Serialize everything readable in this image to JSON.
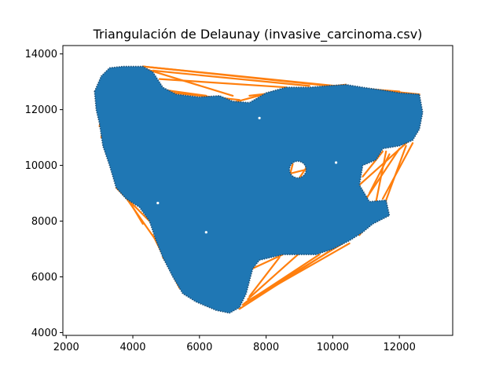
{
  "chart_data": {
    "type": "scatter",
    "title": "Triangulación de Delaunay (invasive_carcinoma.csv)",
    "xlabel": "",
    "ylabel": "",
    "xlim": [
      1900,
      13600
    ],
    "ylim": [
      3900,
      14300
    ],
    "x_ticks": [
      2000,
      4000,
      6000,
      8000,
      10000,
      12000
    ],
    "y_ticks": [
      4000,
      6000,
      8000,
      10000,
      12000,
      14000
    ],
    "grid": false,
    "colors": {
      "points": "#1f77b4",
      "edges": "#ff7f0e",
      "background": "#ffffff",
      "axes": "#000000"
    },
    "region_outline": [
      [
        2850,
        12650
      ],
      [
        3050,
        13200
      ],
      [
        3300,
        13500
      ],
      [
        3700,
        13550
      ],
      [
        4300,
        13550
      ],
      [
        4600,
        13350
      ],
      [
        4900,
        12800
      ],
      [
        5300,
        12550
      ],
      [
        6000,
        12450
      ],
      [
        6600,
        12500
      ],
      [
        7000,
        12300
      ],
      [
        7500,
        12250
      ],
      [
        8000,
        12600
      ],
      [
        8600,
        12800
      ],
      [
        9300,
        12800
      ],
      [
        9800,
        12850
      ],
      [
        10400,
        12900
      ],
      [
        10900,
        12800
      ],
      [
        11500,
        12700
      ],
      [
        12000,
        12600
      ],
      [
        12600,
        12550
      ],
      [
        12700,
        11900
      ],
      [
        12600,
        11300
      ],
      [
        12400,
        10900
      ],
      [
        12000,
        10700
      ],
      [
        11500,
        10600
      ],
      [
        11300,
        10200
      ],
      [
        10900,
        10000
      ],
      [
        10800,
        9300
      ],
      [
        11100,
        8700
      ],
      [
        11600,
        8750
      ],
      [
        11700,
        8200
      ],
      [
        11200,
        7900
      ],
      [
        10900,
        7600
      ],
      [
        10500,
        7300
      ],
      [
        10000,
        7000
      ],
      [
        9500,
        6800
      ],
      [
        8500,
        6800
      ],
      [
        7800,
        6600
      ],
      [
        7600,
        6300
      ],
      [
        7400,
        5400
      ],
      [
        7200,
        4900
      ],
      [
        6900,
        4700
      ],
      [
        6500,
        4800
      ],
      [
        5900,
        5100
      ],
      [
        5500,
        5400
      ],
      [
        5200,
        6000
      ],
      [
        4900,
        6700
      ],
      [
        4700,
        7300
      ],
      [
        4500,
        8000
      ],
      [
        4200,
        8500
      ],
      [
        3800,
        8800
      ],
      [
        3500,
        9200
      ],
      [
        3300,
        10000
      ],
      [
        3100,
        10700
      ],
      [
        3000,
        11500
      ],
      [
        2900,
        12000
      ]
    ],
    "hole": {
      "center": [
        8950,
        9850
      ],
      "radius": [
        250,
        300
      ]
    },
    "edge_segments": [
      [
        [
          4300,
          13550
        ],
        [
          10300,
          12800
        ]
      ],
      [
        [
          4600,
          13400
        ],
        [
          9300,
          12850
        ]
      ],
      [
        [
          4400,
          13450
        ],
        [
          7000,
          12500
        ]
      ],
      [
        [
          4800,
          13100
        ],
        [
          8600,
          12800
        ]
      ],
      [
        [
          5000,
          12700
        ],
        [
          6200,
          12500
        ]
      ],
      [
        [
          5200,
          12600
        ],
        [
          7200,
          12350
        ]
      ],
      [
        [
          7000,
          12250
        ],
        [
          8400,
          12700
        ]
      ],
      [
        [
          7500,
          12500
        ],
        [
          10400,
          12900
        ]
      ],
      [
        [
          4300,
          13550
        ],
        [
          12600,
          12550
        ]
      ],
      [
        [
          9800,
          12850
        ],
        [
          12000,
          12650
        ]
      ],
      [
        [
          3000,
          11400
        ],
        [
          3200,
          12700
        ]
      ],
      [
        [
          3050,
          11000
        ],
        [
          3300,
          12500
        ]
      ],
      [
        [
          3300,
          10100
        ],
        [
          3900,
          8850
        ]
      ],
      [
        [
          3500,
          9200
        ],
        [
          4500,
          8000
        ]
      ],
      [
        [
          3700,
          9000
        ],
        [
          4700,
          7300
        ]
      ],
      [
        [
          3900,
          8700
        ],
        [
          4300,
          7900
        ]
      ],
      [
        [
          4700,
          7300
        ],
        [
          5600,
          5600
        ]
      ],
      [
        [
          4900,
          6700
        ],
        [
          5300,
          6100
        ]
      ],
      [
        [
          4600,
          7500
        ],
        [
          5400,
          5600
        ]
      ],
      [
        [
          7400,
          5100
        ],
        [
          10300,
          7200
        ]
      ],
      [
        [
          7300,
          5000
        ],
        [
          9600,
          6800
        ]
      ],
      [
        [
          7450,
          5200
        ],
        [
          9000,
          6850
        ]
      ],
      [
        [
          7350,
          5050
        ],
        [
          10500,
          7200
        ]
      ],
      [
        [
          7500,
          5300
        ],
        [
          8400,
          6700
        ]
      ],
      [
        [
          7200,
          4850
        ],
        [
          10000,
          7000
        ]
      ],
      [
        [
          7600,
          6300
        ],
        [
          8500,
          6800
        ]
      ],
      [
        [
          10800,
          7500
        ],
        [
          11600,
          8700
        ]
      ],
      [
        [
          10800,
          9300
        ],
        [
          12300,
          10900
        ]
      ],
      [
        [
          11000,
          8800
        ],
        [
          12000,
          10600
        ]
      ],
      [
        [
          11500,
          8800
        ],
        [
          12400,
          10800
        ]
      ],
      [
        [
          11300,
          8700
        ],
        [
          11600,
          10500
        ]
      ],
      [
        [
          11100,
          9000
        ],
        [
          11700,
          10400
        ]
      ],
      [
        [
          11600,
          8750
        ],
        [
          12200,
          10700
        ]
      ],
      [
        [
          10900,
          9600
        ],
        [
          11500,
          10500
        ]
      ],
      [
        [
          8700,
          9600
        ],
        [
          8800,
          10050
        ]
      ],
      [
        [
          9000,
          9550
        ],
        [
          9250,
          10000
        ]
      ],
      [
        [
          8700,
          9700
        ],
        [
          9200,
          9850
        ]
      ]
    ]
  }
}
